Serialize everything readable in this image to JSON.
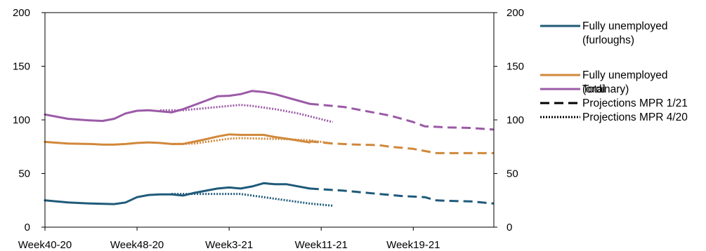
{
  "chart_data": {
    "type": "line",
    "title": "",
    "xlabel": "",
    "ylabel": "",
    "ylim": [
      0,
      200
    ],
    "y_ticks": [
      "0",
      "50",
      "100",
      "150",
      "200"
    ],
    "x_ticks": [
      "Week40-20",
      "Week48-20",
      "Week3-21",
      "Week11-21",
      "Week19-21"
    ],
    "x_tick_weeks": [
      0,
      8,
      16,
      24,
      32
    ],
    "x_range_weeks": [
      0,
      39
    ],
    "grid": false,
    "legend_position": "right",
    "legend": [
      {
        "label": "Fully unemployed\n(furloughs)",
        "color": "#1f5a7a",
        "style": "solid"
      },
      {
        "label": "Fully unemployed\n(ordinary)",
        "color": "#d0883a",
        "style": "solid"
      },
      {
        "label": "Total",
        "color": "#9b5aa6",
        "style": "solid"
      },
      {
        "label": "Projections MPR 1/21",
        "color": "#000000",
        "style": "dashed"
      },
      {
        "label": "Projections MPR 4/20",
        "color": "#000000",
        "style": "dotted"
      }
    ],
    "series": [
      {
        "key": "furlough_actual",
        "color": "#1f5a7a",
        "style": "solid",
        "x": [
          0,
          2,
          4,
          6,
          7,
          8,
          9,
          10,
          11,
          12,
          13,
          15,
          16,
          17,
          18,
          19,
          20,
          21,
          23
        ],
        "y": [
          25,
          23,
          22,
          21.5,
          23,
          28,
          30,
          30.5,
          30.5,
          29.5,
          32,
          36,
          37,
          36,
          38,
          41,
          40,
          40,
          36
        ]
      },
      {
        "key": "furlough_mpr121",
        "color": "#1f5a7a",
        "style": "dashed",
        "x": [
          23,
          26,
          29,
          31,
          33,
          34,
          35,
          37,
          39
        ],
        "y": [
          36,
          34,
          31,
          29,
          28,
          25,
          24.5,
          24,
          22
        ]
      },
      {
        "key": "furlough_mpr420",
        "color": "#1f5a7a",
        "style": "dotted",
        "x": [
          11,
          13,
          15,
          16,
          17,
          19,
          21,
          23,
          25
        ],
        "y": [
          31,
          31,
          31,
          31,
          31,
          28,
          25,
          22,
          20
        ]
      },
      {
        "key": "ordinary_actual",
        "color": "#d0883a",
        "style": "solid",
        "x": [
          0,
          2,
          4,
          5,
          6,
          7,
          8,
          9,
          10,
          11,
          12,
          14,
          15,
          16,
          17,
          18,
          19,
          20,
          21,
          23
        ],
        "y": [
          79.5,
          78,
          77.5,
          77,
          77,
          77.5,
          78.5,
          79,
          78.5,
          77.5,
          77.5,
          82,
          84.5,
          86.5,
          86,
          86,
          86,
          84,
          82.5,
          79
        ]
      },
      {
        "key": "ordinary_mpr121",
        "color": "#d0883a",
        "style": "dashed",
        "x": [
          23,
          25,
          27,
          29,
          30,
          31,
          32,
          34,
          35,
          37,
          39
        ],
        "y": [
          80,
          78,
          77,
          76.5,
          75,
          74,
          73,
          69,
          69,
          69,
          69
        ]
      },
      {
        "key": "ordinary_mpr420",
        "color": "#d0883a",
        "style": "dotted",
        "x": [
          11,
          13,
          15,
          16,
          17,
          19,
          21,
          23,
          25
        ],
        "y": [
          77.5,
          78,
          81,
          82.5,
          83,
          82.5,
          82,
          81,
          78
        ]
      },
      {
        "key": "total_actual",
        "color": "#9b5aa6",
        "style": "solid",
        "x": [
          0,
          2,
          4,
          5,
          6,
          7,
          8,
          9,
          10,
          11,
          12,
          13,
          14,
          15,
          16,
          17,
          18,
          19,
          20,
          21,
          22,
          23
        ],
        "y": [
          105,
          101,
          99.5,
          99,
          101,
          106,
          108.5,
          109,
          108,
          107,
          110,
          114,
          118,
          122,
          122.5,
          124,
          127,
          126,
          124,
          121,
          118,
          115
        ]
      },
      {
        "key": "total_mpr121",
        "color": "#9b5aa6",
        "style": "dashed",
        "x": [
          23,
          26,
          28,
          30,
          32,
          33,
          34,
          35,
          37,
          39
        ],
        "y": [
          115,
          112,
          108,
          104,
          98,
          94,
          93.5,
          93,
          92.5,
          91
        ]
      },
      {
        "key": "total_mpr420",
        "color": "#9b5aa6",
        "style": "dotted",
        "x": [
          10,
          12,
          14,
          16,
          17,
          18,
          20,
          22,
          25
        ],
        "y": [
          109,
          109,
          111,
          113,
          114,
          113,
          110,
          106,
          98
        ]
      }
    ]
  }
}
